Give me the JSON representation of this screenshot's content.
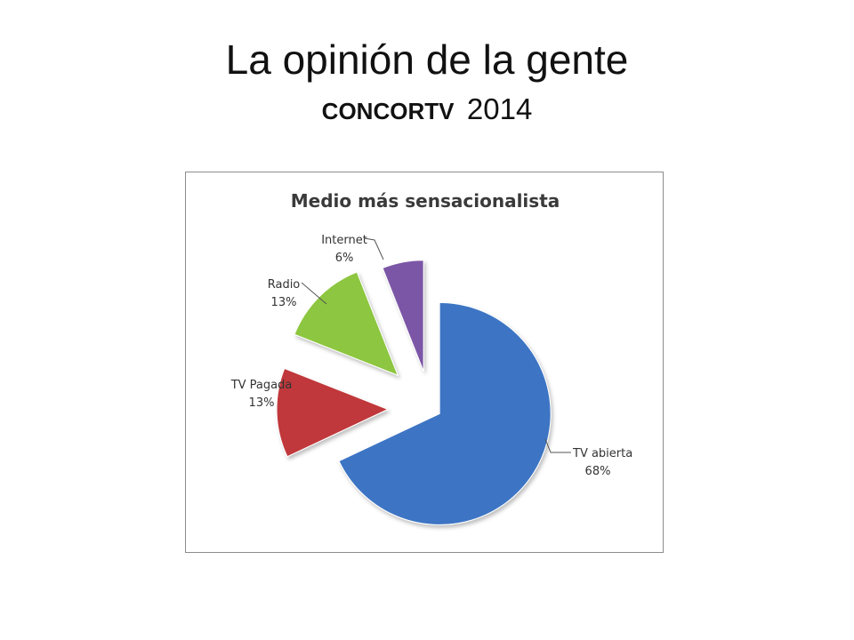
{
  "slide": {
    "title": "La opinión de la gente",
    "subtitle_org": "CONCORTV",
    "subtitle_year": "2014"
  },
  "chart_data": {
    "type": "pie",
    "title": "Medio más sensacionalista",
    "exploded": true,
    "legend": "none",
    "slices": [
      {
        "label": "TV abierta",
        "value": 68,
        "pct_label": "68%",
        "color": "#3E75C4"
      },
      {
        "label": "TV Pagada",
        "value": 13,
        "pct_label": "13%",
        "color": "#C0393B"
      },
      {
        "label": "Radio",
        "value": 13,
        "pct_label": "13%",
        "color": "#8DC63F"
      },
      {
        "label": "Internet",
        "value": 6,
        "pct_label": "6%",
        "color": "#7B56A6"
      }
    ]
  }
}
